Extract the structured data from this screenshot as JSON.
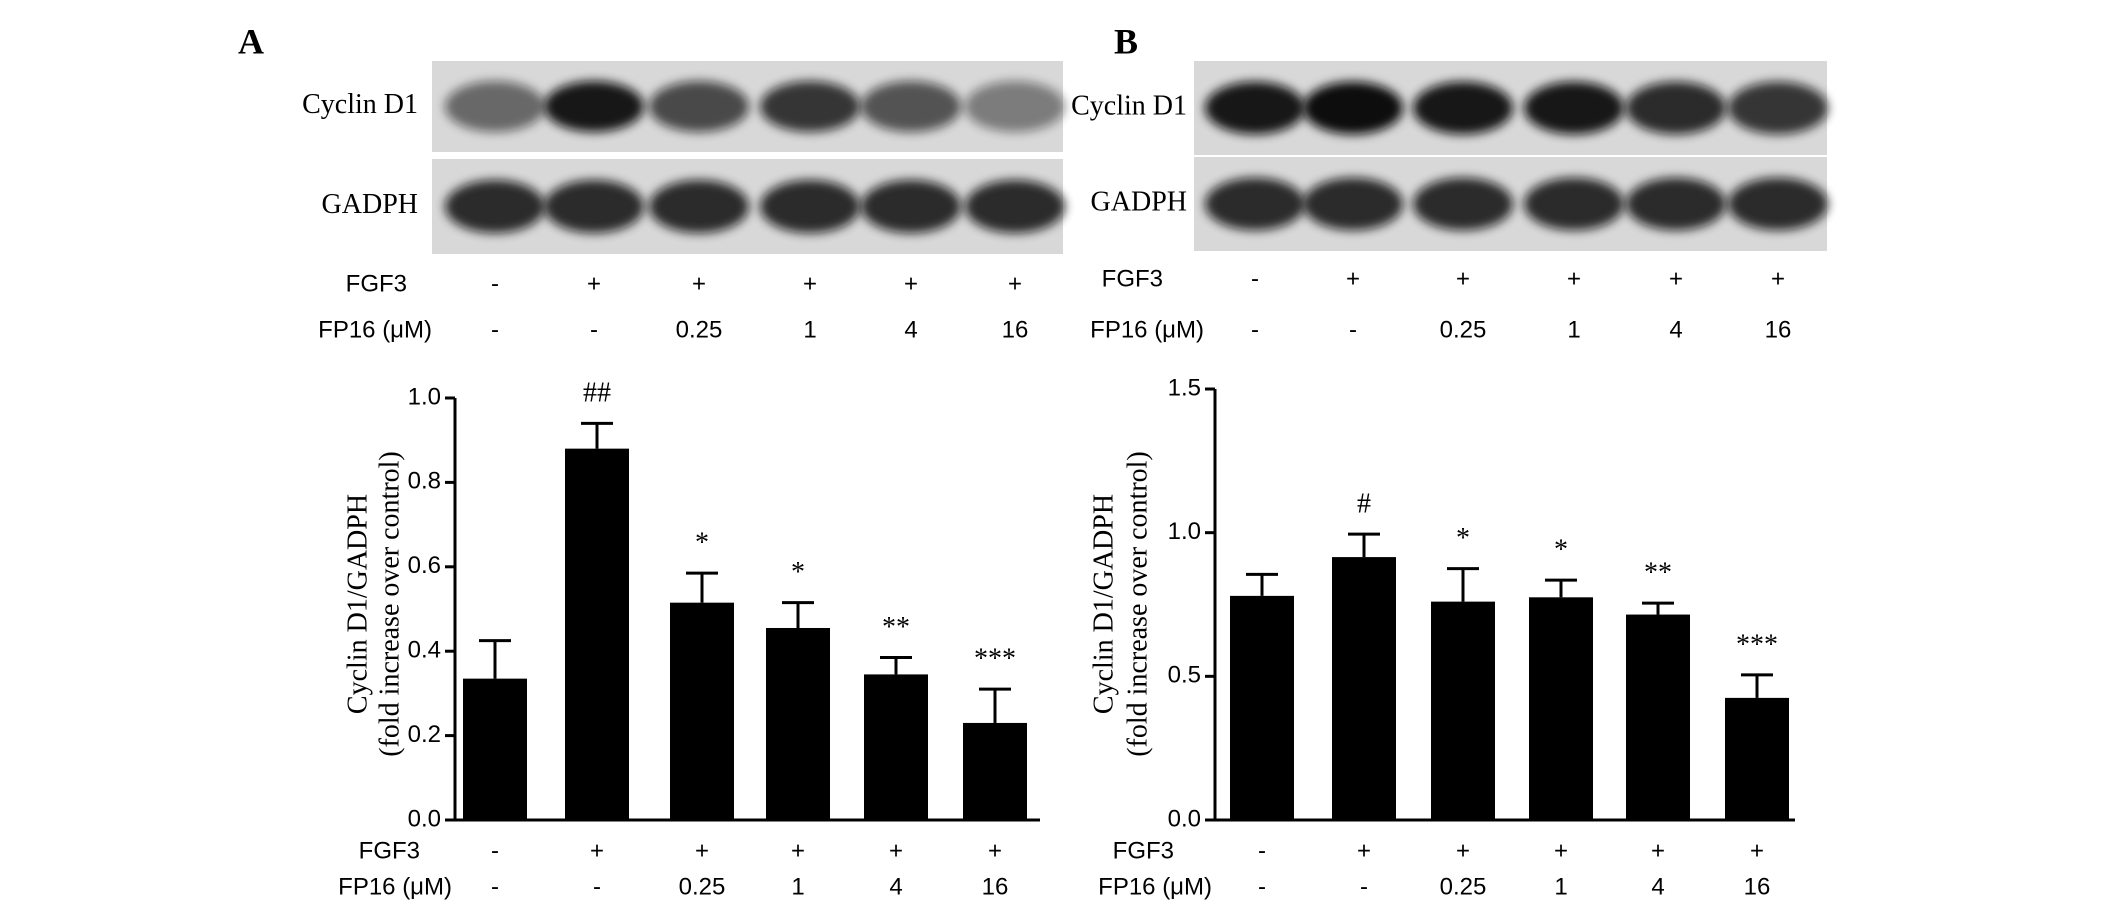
{
  "chart_data": [
    {
      "type": "bar",
      "title": "A",
      "blot_rows": [
        "Cyclin D1",
        "GADPH"
      ],
      "x_labels": [
        {
          "name": "FGF3",
          "values": [
            "-",
            "+",
            "+",
            "+",
            "+",
            "+"
          ]
        },
        {
          "name": "FP16 (μM)",
          "values": [
            "-",
            "-",
            "0.25",
            "1",
            "4",
            "16"
          ]
        }
      ],
      "ylabel": [
        "Cyclin D1/GADPH",
        "(fold increase over control)"
      ],
      "values": [
        0.335,
        0.88,
        0.515,
        0.455,
        0.345,
        0.23
      ],
      "errors": [
        0.09,
        0.06,
        0.07,
        0.06,
        0.04,
        0.08
      ],
      "annotations": [
        null,
        "##",
        "*",
        "*",
        "**",
        "***"
      ],
      "color": "#000000",
      "ylim": [
        0,
        1
      ],
      "yticks": [
        {
          "value": 0,
          "label": "0.0"
        },
        0.2,
        0.4,
        0.6,
        0.8,
        {
          "value": 1,
          "label": "1.0"
        }
      ]
    },
    {
      "type": "bar",
      "title": "B",
      "blot_rows": [
        "Cyclin D1",
        "GADPH"
      ],
      "x_labels": [
        {
          "name": "FGF3",
          "values": [
            "-",
            "+",
            "+",
            "+",
            "+",
            "+"
          ]
        },
        {
          "name": "FP16 (μM)",
          "values": [
            "-",
            "-",
            "0.25",
            "1",
            "4",
            "16"
          ]
        }
      ],
      "ylabel": [
        "Cyclin D1/GADPH",
        "(fold increase over control)"
      ],
      "values": [
        0.78,
        0.915,
        0.76,
        0.775,
        0.715,
        0.425
      ],
      "errors": [
        0.075,
        0.08,
        0.115,
        0.06,
        0.04,
        0.08
      ],
      "annotations": [
        null,
        "#",
        "*",
        "*",
        "**",
        "***"
      ],
      "color": "#000000",
      "ylim": [
        0,
        1.5
      ],
      "yticks": [
        {
          "value": 0,
          "label": "0.0"
        },
        0.5,
        {
          "value": 1,
          "label": "1.0"
        },
        1.5
      ]
    }
  ]
}
